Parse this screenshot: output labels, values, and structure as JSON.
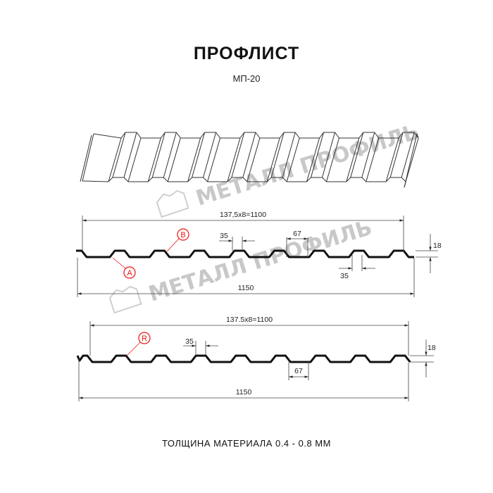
{
  "header": {
    "title": "ПРОФЛИСТ",
    "subtitle": "МП-20"
  },
  "watermark": {
    "text": "МЕТАЛЛ ПРОФИЛЬ",
    "color": "#c8c8c8"
  },
  "profile_1": {
    "pitch_label": "137,5x8=1100",
    "width_label": "1150",
    "crest_label": "35",
    "valley_crest_label": "35",
    "valley_label": "67",
    "height_label": "18",
    "marker_a": "A",
    "marker_b": "B"
  },
  "profile_2": {
    "pitch_label": "137.5x8=1100",
    "width_label": "1150",
    "crest_label": "35",
    "valley_label": "67",
    "height_label": "18",
    "marker_r": "R"
  },
  "marker_color": "#e11111",
  "footer": {
    "thickness": "ТОЛЩИНА МАТЕРИАЛА 0.4 - 0.8 ММ"
  }
}
